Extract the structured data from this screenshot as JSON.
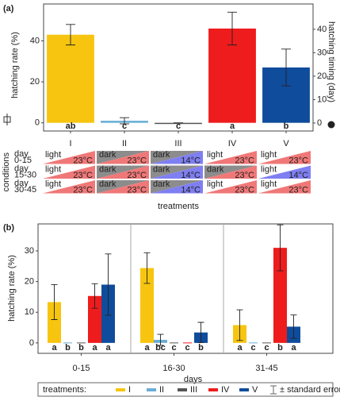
{
  "chart_data": [
    {
      "type": "bar",
      "panel": "(a)",
      "ylabel": "hatching rate (%)",
      "y2label": "hatching timing (day)",
      "categories": [
        "I",
        "II",
        "III",
        "IV",
        "V"
      ],
      "values": [
        43,
        1,
        0,
        46,
        27
      ],
      "errors": [
        5,
        1.5,
        0,
        8,
        9
      ],
      "letters": [
        "ab",
        "c",
        "c",
        "a",
        "b"
      ],
      "colors": [
        "#f7c510",
        "#6aaed6",
        "#555555",
        "#ee1c1c",
        "#0f4c9c"
      ],
      "ylim": [
        -4,
        58
      ],
      "yticks": [
        0,
        20,
        40
      ],
      "y2lim": [
        -3.4,
        50.8
      ],
      "y2ticks": [
        0,
        10,
        20,
        30,
        40
      ],
      "xlabel": "treatments",
      "conditions": {
        "label": "conditions",
        "days": [
          [
            "day",
            "0-15"
          ],
          [
            "day",
            "15-30"
          ],
          [
            "day",
            "30-45"
          ]
        ],
        "cells": [
          [
            {
              "light": "light",
              "temp": "23°C"
            },
            {
              "light": "dark",
              "temp": "23°C"
            },
            {
              "light": "dark",
              "temp": "14°C"
            },
            {
              "light": "light",
              "temp": "23°C"
            },
            {
              "light": "light",
              "temp": "23°C"
            }
          ],
          [
            {
              "light": "light",
              "temp": "23°C"
            },
            {
              "light": "dark",
              "temp": "23°C"
            },
            {
              "light": "dark",
              "temp": "14°C"
            },
            {
              "light": "dark",
              "temp": "23°C"
            },
            {
              "light": "light",
              "temp": "14°C"
            }
          ],
          [
            {
              "light": "light",
              "temp": "23°C"
            },
            {
              "light": "dark",
              "temp": "23°C"
            },
            {
              "light": "dark",
              "temp": "14°C"
            },
            {
              "light": "light",
              "temp": "23°C"
            },
            {
              "light": "light",
              "temp": "23°C"
            }
          ]
        ],
        "light_colors": {
          "light": "#ffffff",
          "dark": "#8c8c8c"
        },
        "temp_colors": {
          "23°C": "#f07878",
          "14°C": "#7f7ff2"
        }
      }
    },
    {
      "type": "grouped_bar",
      "panel": "(b)",
      "ylabel": "hatching rate (%)",
      "xlabel": "days",
      "categories": [
        "0-15",
        "16-30",
        "31-45"
      ],
      "series": [
        {
          "name": "I",
          "color": "#f7c510",
          "values": [
            13.3,
            24.4,
            5.8
          ],
          "errors": [
            5.7,
            5,
            5
          ],
          "letters": [
            "a",
            "a",
            "a"
          ]
        },
        {
          "name": "II",
          "color": "#6aaed6",
          "values": [
            0,
            1,
            0
          ],
          "errors": [
            null,
            1.8,
            null
          ],
          "letters": [
            "b",
            "bc",
            "c"
          ]
        },
        {
          "name": "III",
          "color": "#555555",
          "values": [
            0,
            0,
            0
          ],
          "errors": [
            null,
            null,
            null
          ],
          "letters": [
            "b",
            "c",
            "c"
          ]
        },
        {
          "name": "IV",
          "color": "#ee1c1c",
          "values": [
            15.3,
            0,
            31
          ],
          "errors": [
            4,
            null,
            7.5
          ],
          "letters": [
            "a",
            "c",
            "b"
          ]
        },
        {
          "name": "V",
          "color": "#0f4c9c",
          "values": [
            19,
            3.4,
            5.3
          ],
          "errors": [
            10,
            3.3,
            3.8
          ],
          "letters": [
            "a",
            "b",
            "a"
          ]
        }
      ],
      "ylim": [
        -3.4,
        38.8
      ],
      "yticks": [
        0,
        10,
        20,
        30
      ],
      "legend_title": "treatments:",
      "error_legend": "± standard error"
    }
  ]
}
